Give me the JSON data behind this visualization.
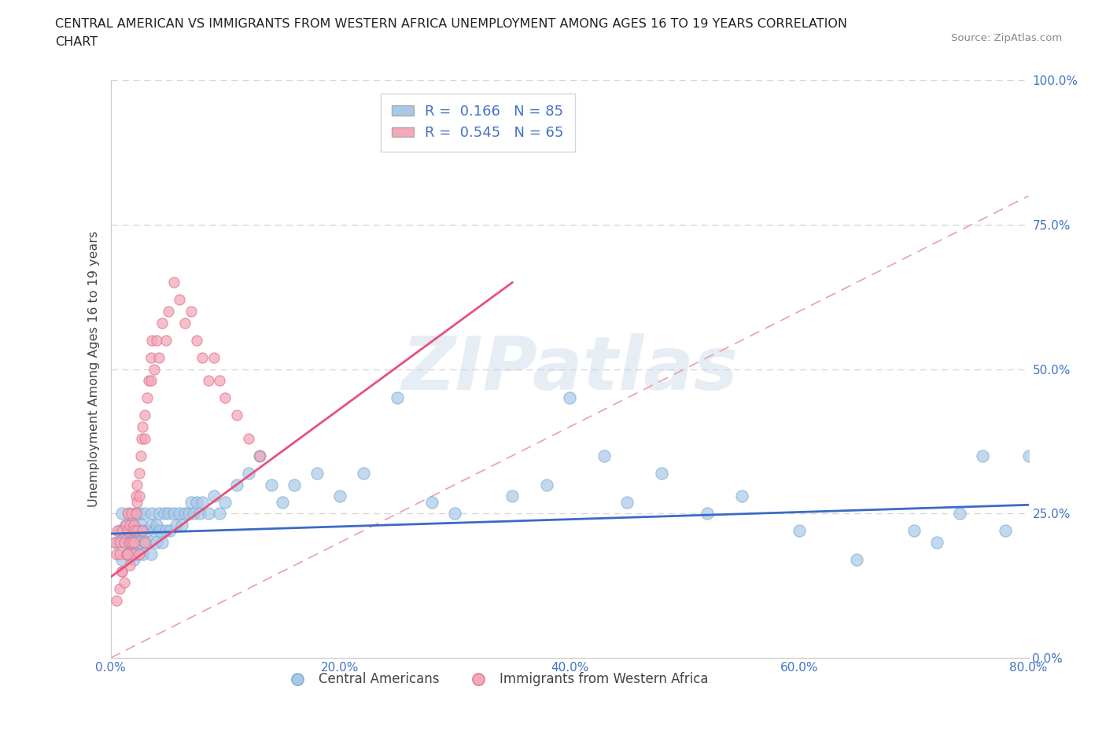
{
  "title_line1": "CENTRAL AMERICAN VS IMMIGRANTS FROM WESTERN AFRICA UNEMPLOYMENT AMONG AGES 16 TO 19 YEARS CORRELATION",
  "title_line2": "CHART",
  "source_text": "Source: ZipAtlas.com",
  "ylabel": "Unemployment Among Ages 16 to 19 years",
  "xlim": [
    0,
    0.8
  ],
  "ylim": [
    0,
    1.0
  ],
  "xticks": [
    0.0,
    0.2,
    0.4,
    0.6,
    0.8
  ],
  "xticklabels": [
    "0.0%",
    "20.0%",
    "40.0%",
    "60.0%",
    "80.0%"
  ],
  "yticks": [
    0.0,
    0.25,
    0.5,
    0.75,
    1.0
  ],
  "yticklabels": [
    "0.0%",
    "25.0%",
    "50.0%",
    "75.0%",
    "100.0%"
  ],
  "blue_color": "#a8c8e8",
  "blue_edge": "#7aabcf",
  "pink_color": "#f4a8b8",
  "pink_edge": "#e07090",
  "blue_line_color": "#3a6bc4",
  "pink_line_color": "#e8507a",
  "diag_line_color": "#e8a0b0",
  "R_blue": 0.166,
  "N_blue": 85,
  "R_pink": 0.545,
  "N_pink": 65,
  "legend_label_blue": "Central Americans",
  "legend_label_pink": "Immigrants from Western Africa",
  "watermark": "ZIPatlas",
  "grid_color": "#d8d8d8",
  "tick_color": "#4472C4",
  "blue_scatter_x": [
    0.005,
    0.008,
    0.01,
    0.01,
    0.012,
    0.013,
    0.015,
    0.015,
    0.016,
    0.017,
    0.018,
    0.018,
    0.02,
    0.02,
    0.02,
    0.022,
    0.022,
    0.023,
    0.023,
    0.025,
    0.025,
    0.026,
    0.027,
    0.028,
    0.028,
    0.03,
    0.03,
    0.032,
    0.033,
    0.035,
    0.035,
    0.036,
    0.038,
    0.04,
    0.04,
    0.042,
    0.043,
    0.045,
    0.047,
    0.048,
    0.05,
    0.052,
    0.055,
    0.057,
    0.06,
    0.062,
    0.065,
    0.068,
    0.07,
    0.072,
    0.075,
    0.078,
    0.08,
    0.085,
    0.09,
    0.095,
    0.1,
    0.11,
    0.12,
    0.13,
    0.14,
    0.15,
    0.16,
    0.18,
    0.2,
    0.22,
    0.25,
    0.28,
    0.3,
    0.35,
    0.38,
    0.4,
    0.43,
    0.45,
    0.48,
    0.52,
    0.55,
    0.6,
    0.65,
    0.7,
    0.72,
    0.74,
    0.76,
    0.78,
    0.8
  ],
  "blue_scatter_y": [
    0.2,
    0.22,
    0.17,
    0.25,
    0.2,
    0.23,
    0.18,
    0.22,
    0.25,
    0.2,
    0.22,
    0.18,
    0.2,
    0.23,
    0.17,
    0.22,
    0.25,
    0.2,
    0.18,
    0.22,
    0.25,
    0.2,
    0.23,
    0.18,
    0.22,
    0.2,
    0.25,
    0.22,
    0.2,
    0.23,
    0.18,
    0.25,
    0.22,
    0.2,
    0.23,
    0.25,
    0.22,
    0.2,
    0.25,
    0.22,
    0.25,
    0.22,
    0.25,
    0.23,
    0.25,
    0.23,
    0.25,
    0.25,
    0.27,
    0.25,
    0.27,
    0.25,
    0.27,
    0.25,
    0.28,
    0.25,
    0.27,
    0.3,
    0.32,
    0.35,
    0.3,
    0.27,
    0.3,
    0.32,
    0.28,
    0.32,
    0.45,
    0.27,
    0.25,
    0.28,
    0.3,
    0.45,
    0.35,
    0.27,
    0.32,
    0.25,
    0.28,
    0.22,
    0.17,
    0.22,
    0.2,
    0.25,
    0.35,
    0.22,
    0.35
  ],
  "pink_scatter_x": [
    0.003,
    0.005,
    0.006,
    0.008,
    0.008,
    0.01,
    0.01,
    0.012,
    0.013,
    0.014,
    0.015,
    0.015,
    0.016,
    0.017,
    0.018,
    0.018,
    0.02,
    0.02,
    0.02,
    0.022,
    0.022,
    0.023,
    0.023,
    0.025,
    0.025,
    0.026,
    0.027,
    0.028,
    0.03,
    0.03,
    0.032,
    0.033,
    0.035,
    0.035,
    0.036,
    0.038,
    0.04,
    0.042,
    0.045,
    0.048,
    0.05,
    0.055,
    0.06,
    0.065,
    0.07,
    0.075,
    0.08,
    0.085,
    0.09,
    0.095,
    0.1,
    0.11,
    0.12,
    0.13,
    0.005,
    0.008,
    0.01,
    0.012,
    0.015,
    0.017,
    0.02,
    0.023,
    0.025,
    0.028,
    0.03
  ],
  "pink_scatter_y": [
    0.2,
    0.18,
    0.22,
    0.18,
    0.2,
    0.15,
    0.22,
    0.2,
    0.23,
    0.18,
    0.22,
    0.25,
    0.2,
    0.23,
    0.25,
    0.2,
    0.23,
    0.18,
    0.22,
    0.25,
    0.28,
    0.3,
    0.27,
    0.32,
    0.28,
    0.35,
    0.38,
    0.4,
    0.42,
    0.38,
    0.45,
    0.48,
    0.52,
    0.48,
    0.55,
    0.5,
    0.55,
    0.52,
    0.58,
    0.55,
    0.6,
    0.65,
    0.62,
    0.58,
    0.6,
    0.55,
    0.52,
    0.48,
    0.52,
    0.48,
    0.45,
    0.42,
    0.38,
    0.35,
    0.1,
    0.12,
    0.15,
    0.13,
    0.18,
    0.16,
    0.2,
    0.22,
    0.18,
    0.22,
    0.2
  ],
  "blue_line_x": [
    0.0,
    0.8
  ],
  "blue_line_y": [
    0.215,
    0.265
  ],
  "pink_line_x": [
    0.0,
    0.35
  ],
  "pink_line_y": [
    0.14,
    0.65
  ]
}
